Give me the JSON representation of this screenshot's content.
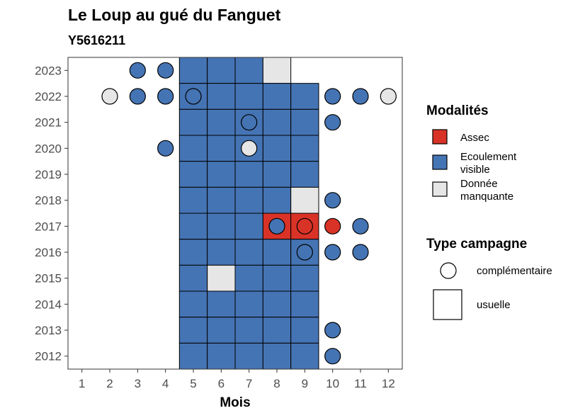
{
  "chart_data": {
    "type": "heatmap",
    "title": "Le Loup au gué du Fanguet",
    "subtitle": "Y5616211",
    "xlabel": "Mois",
    "ylabel": "",
    "x_ticks": [
      1,
      2,
      3,
      4,
      5,
      6,
      7,
      8,
      9,
      10,
      11,
      12
    ],
    "y_ticks": [
      2012,
      2013,
      2014,
      2015,
      2016,
      2017,
      2018,
      2019,
      2020,
      2021,
      2022,
      2023
    ],
    "xlim": [
      0.5,
      12.5
    ],
    "ylim": [
      2011.5,
      2023.5
    ],
    "grid": false,
    "legend_placement": "right",
    "colors": {
      "Assec": "#d93327",
      "Ecoulement visible": "#4574b4",
      "Donnée manquante": "#e6e6e6"
    },
    "legend": {
      "fill_title": "Modalités",
      "fill_items": [
        {
          "key": "Assec",
          "lines": [
            "Assec"
          ]
        },
        {
          "key": "Ecoulement visible",
          "lines": [
            "Ecoulement",
            "visible"
          ]
        },
        {
          "key": "Donnée manquante",
          "lines": [
            "Donnée",
            "manquante"
          ]
        }
      ],
      "shape_title": "Type campagne",
      "shape_items": [
        {
          "shape": "circle",
          "label": "complémentaire"
        },
        {
          "shape": "square",
          "label": "usuelle"
        }
      ]
    },
    "usuelle": [
      {
        "year": 2023,
        "month": 5,
        "modalite": "Ecoulement visible"
      },
      {
        "year": 2023,
        "month": 6,
        "modalite": "Ecoulement visible"
      },
      {
        "year": 2023,
        "month": 7,
        "modalite": "Ecoulement visible"
      },
      {
        "year": 2023,
        "month": 8,
        "modalite": "Donnée manquante"
      },
      {
        "year": 2022,
        "month": 5,
        "modalite": "Ecoulement visible"
      },
      {
        "year": 2022,
        "month": 6,
        "modalite": "Ecoulement visible"
      },
      {
        "year": 2022,
        "month": 7,
        "modalite": "Ecoulement visible"
      },
      {
        "year": 2022,
        "month": 8,
        "modalite": "Ecoulement visible"
      },
      {
        "year": 2022,
        "month": 9,
        "modalite": "Ecoulement visible"
      },
      {
        "year": 2021,
        "month": 5,
        "modalite": "Ecoulement visible"
      },
      {
        "year": 2021,
        "month": 6,
        "modalite": "Ecoulement visible"
      },
      {
        "year": 2021,
        "month": 7,
        "modalite": "Ecoulement visible"
      },
      {
        "year": 2021,
        "month": 8,
        "modalite": "Ecoulement visible"
      },
      {
        "year": 2021,
        "month": 9,
        "modalite": "Ecoulement visible"
      },
      {
        "year": 2020,
        "month": 5,
        "modalite": "Ecoulement visible"
      },
      {
        "year": 2020,
        "month": 6,
        "modalite": "Ecoulement visible"
      },
      {
        "year": 2020,
        "month": 7,
        "modalite": "Ecoulement visible"
      },
      {
        "year": 2020,
        "month": 8,
        "modalite": "Ecoulement visible"
      },
      {
        "year": 2020,
        "month": 9,
        "modalite": "Ecoulement visible"
      },
      {
        "year": 2019,
        "month": 5,
        "modalite": "Ecoulement visible"
      },
      {
        "year": 2019,
        "month": 6,
        "modalite": "Ecoulement visible"
      },
      {
        "year": 2019,
        "month": 7,
        "modalite": "Ecoulement visible"
      },
      {
        "year": 2019,
        "month": 8,
        "modalite": "Ecoulement visible"
      },
      {
        "year": 2019,
        "month": 9,
        "modalite": "Ecoulement visible"
      },
      {
        "year": 2018,
        "month": 5,
        "modalite": "Ecoulement visible"
      },
      {
        "year": 2018,
        "month": 6,
        "modalite": "Ecoulement visible"
      },
      {
        "year": 2018,
        "month": 7,
        "modalite": "Ecoulement visible"
      },
      {
        "year": 2018,
        "month": 8,
        "modalite": "Ecoulement visible"
      },
      {
        "year": 2018,
        "month": 9,
        "modalite": "Donnée manquante"
      },
      {
        "year": 2017,
        "month": 5,
        "modalite": "Ecoulement visible"
      },
      {
        "year": 2017,
        "month": 6,
        "modalite": "Ecoulement visible"
      },
      {
        "year": 2017,
        "month": 7,
        "modalite": "Ecoulement visible"
      },
      {
        "year": 2017,
        "month": 8,
        "modalite": "Assec"
      },
      {
        "year": 2017,
        "month": 9,
        "modalite": "Assec"
      },
      {
        "year": 2016,
        "month": 5,
        "modalite": "Ecoulement visible"
      },
      {
        "year": 2016,
        "month": 6,
        "modalite": "Ecoulement visible"
      },
      {
        "year": 2016,
        "month": 7,
        "modalite": "Ecoulement visible"
      },
      {
        "year": 2016,
        "month": 8,
        "modalite": "Ecoulement visible"
      },
      {
        "year": 2016,
        "month": 9,
        "modalite": "Ecoulement visible"
      },
      {
        "year": 2015,
        "month": 5,
        "modalite": "Ecoulement visible"
      },
      {
        "year": 2015,
        "month": 6,
        "modalite": "Donnée manquante"
      },
      {
        "year": 2015,
        "month": 7,
        "modalite": "Ecoulement visible"
      },
      {
        "year": 2015,
        "month": 8,
        "modalite": "Ecoulement visible"
      },
      {
        "year": 2015,
        "month": 9,
        "modalite": "Ecoulement visible"
      },
      {
        "year": 2014,
        "month": 5,
        "modalite": "Ecoulement visible"
      },
      {
        "year": 2014,
        "month": 6,
        "modalite": "Ecoulement visible"
      },
      {
        "year": 2014,
        "month": 7,
        "modalite": "Ecoulement visible"
      },
      {
        "year": 2014,
        "month": 8,
        "modalite": "Ecoulement visible"
      },
      {
        "year": 2014,
        "month": 9,
        "modalite": "Ecoulement visible"
      },
      {
        "year": 2013,
        "month": 5,
        "modalite": "Ecoulement visible"
      },
      {
        "year": 2013,
        "month": 6,
        "modalite": "Ecoulement visible"
      },
      {
        "year": 2013,
        "month": 7,
        "modalite": "Ecoulement visible"
      },
      {
        "year": 2013,
        "month": 8,
        "modalite": "Ecoulement visible"
      },
      {
        "year": 2013,
        "month": 9,
        "modalite": "Ecoulement visible"
      },
      {
        "year": 2012,
        "month": 5,
        "modalite": "Ecoulement visible"
      },
      {
        "year": 2012,
        "month": 6,
        "modalite": "Ecoulement visible"
      },
      {
        "year": 2012,
        "month": 7,
        "modalite": "Ecoulement visible"
      },
      {
        "year": 2012,
        "month": 8,
        "modalite": "Ecoulement visible"
      },
      {
        "year": 2012,
        "month": 9,
        "modalite": "Ecoulement visible"
      }
    ],
    "complementaire": [
      {
        "year": 2023,
        "month": 3,
        "modalite": "Ecoulement visible"
      },
      {
        "year": 2023,
        "month": 4,
        "modalite": "Ecoulement visible"
      },
      {
        "year": 2022,
        "month": 2,
        "modalite": "Donnée manquante"
      },
      {
        "year": 2022,
        "month": 3,
        "modalite": "Ecoulement visible"
      },
      {
        "year": 2022,
        "month": 4,
        "modalite": "Ecoulement visible"
      },
      {
        "year": 2022,
        "month": 5,
        "modalite": "Ecoulement visible"
      },
      {
        "year": 2022,
        "month": 10,
        "modalite": "Ecoulement visible"
      },
      {
        "year": 2022,
        "month": 11,
        "modalite": "Ecoulement visible"
      },
      {
        "year": 2022,
        "month": 12,
        "modalite": "Donnée manquante"
      },
      {
        "year": 2021,
        "month": 7,
        "modalite": "Ecoulement visible"
      },
      {
        "year": 2021,
        "month": 10,
        "modalite": "Ecoulement visible"
      },
      {
        "year": 2020,
        "month": 4,
        "modalite": "Ecoulement visible"
      },
      {
        "year": 2020,
        "month": 7,
        "modalite": "Donnée manquante"
      },
      {
        "year": 2018,
        "month": 10,
        "modalite": "Ecoulement visible"
      },
      {
        "year": 2017,
        "month": 8,
        "modalite": "Ecoulement visible"
      },
      {
        "year": 2017,
        "month": 9,
        "modalite": "Assec"
      },
      {
        "year": 2017,
        "month": 10,
        "modalite": "Assec"
      },
      {
        "year": 2017,
        "month": 11,
        "modalite": "Ecoulement visible"
      },
      {
        "year": 2016,
        "month": 9,
        "modalite": "Ecoulement visible"
      },
      {
        "year": 2016,
        "month": 10,
        "modalite": "Ecoulement visible"
      },
      {
        "year": 2016,
        "month": 11,
        "modalite": "Ecoulement visible"
      },
      {
        "year": 2013,
        "month": 10,
        "modalite": "Ecoulement visible"
      },
      {
        "year": 2012,
        "month": 10,
        "modalite": "Ecoulement visible"
      }
    ]
  }
}
